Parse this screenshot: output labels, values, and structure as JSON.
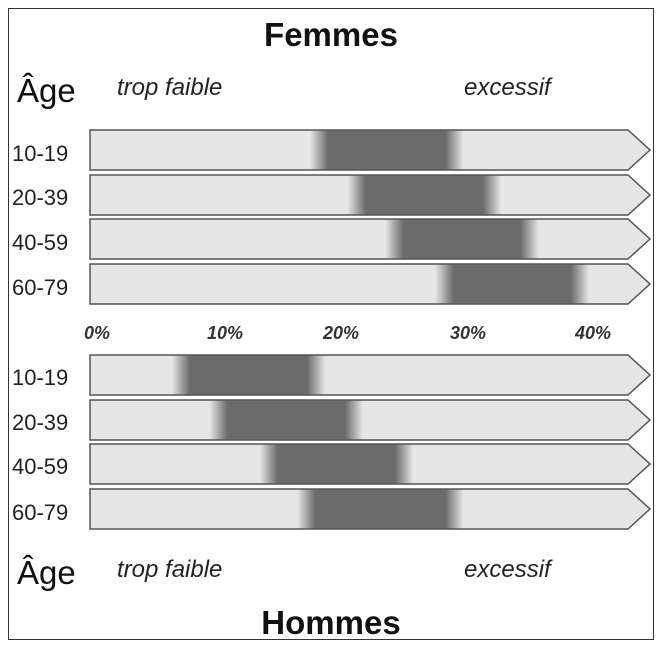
{
  "chart_data": {
    "type": "range-bar",
    "x_unit": "%",
    "xlim": [
      0,
      40
    ],
    "x_ticks": [
      "0%",
      "10%",
      "20%",
      "30%",
      "40%"
    ],
    "colors": {
      "arrow_fill": "#e6e6e6",
      "arrow_stroke": "#555555",
      "healthy_band": "#6b6b6b"
    },
    "panels": [
      {
        "title": "Femmes",
        "age_header": "Âge",
        "low_label": "trop faible",
        "high_label": "excessif",
        "rows": [
          {
            "age": "10-19",
            "range": [
              18,
              28
            ]
          },
          {
            "age": "20-39",
            "range": [
              21,
              31
            ]
          },
          {
            "age": "40-59",
            "range": [
              24,
              34
            ]
          },
          {
            "age": "60-79",
            "range": [
              28,
              38
            ]
          }
        ]
      },
      {
        "title": "Hommes",
        "age_header": "Âge",
        "low_label": "trop faible",
        "high_label": "excessif",
        "rows": [
          {
            "age": "10-19",
            "range": [
              7,
              17
            ]
          },
          {
            "age": "20-39",
            "range": [
              10,
              20
            ]
          },
          {
            "age": "40-59",
            "range": [
              14,
              24
            ]
          },
          {
            "age": "60-79",
            "range": [
              17,
              28
            ]
          }
        ]
      }
    ]
  }
}
